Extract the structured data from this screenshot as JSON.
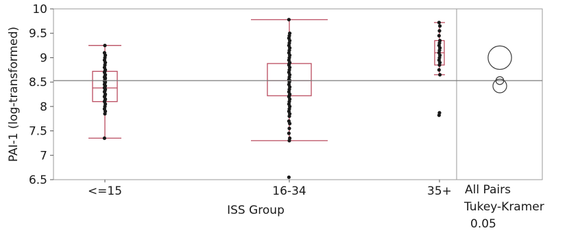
{
  "chart_data": {
    "type": "box",
    "xlabel": "ISS Group",
    "ylabel": "PAI-1 (log-transformed)",
    "ylim": [
      6.5,
      10
    ],
    "yticks": [
      6.5,
      7,
      7.5,
      8,
      8.5,
      9,
      9.5,
      10
    ],
    "grand_mean": 8.53,
    "categories": [
      "<=15",
      "16-34",
      "35+"
    ],
    "box_color": "#b94a5e",
    "point_color": "#1a1a1a",
    "groups": [
      {
        "name": "<=15",
        "whisker_low": 7.35,
        "q1": 8.1,
        "median": 8.38,
        "q3": 8.72,
        "whisker_high": 9.25,
        "points": [
          7.35,
          7.85,
          7.9,
          7.95,
          8.0,
          8.05,
          8.1,
          8.12,
          8.15,
          8.2,
          8.22,
          8.25,
          8.3,
          8.32,
          8.35,
          8.38,
          8.4,
          8.42,
          8.45,
          8.48,
          8.5,
          8.52,
          8.55,
          8.58,
          8.6,
          8.62,
          8.65,
          8.7,
          8.72,
          8.75,
          8.8,
          8.85,
          8.9,
          8.95,
          9.0,
          9.05,
          9.1,
          9.25
        ]
      },
      {
        "name": "16-34",
        "whisker_low": 7.3,
        "q1": 8.22,
        "median": 8.53,
        "q3": 8.88,
        "whisker_high": 9.78,
        "points": [
          6.55,
          7.3,
          7.35,
          7.45,
          7.55,
          7.65,
          7.7,
          7.8,
          7.85,
          7.9,
          7.95,
          8.0,
          8.05,
          8.1,
          8.15,
          8.2,
          8.22,
          8.25,
          8.3,
          8.35,
          8.4,
          8.45,
          8.5,
          8.53,
          8.55,
          8.6,
          8.65,
          8.7,
          8.75,
          8.8,
          8.85,
          8.88,
          8.9,
          8.95,
          9.0,
          9.05,
          9.1,
          9.15,
          9.2,
          9.25,
          9.3,
          9.35,
          9.4,
          9.45,
          9.5,
          9.78
        ]
      },
      {
        "name": "35+",
        "whisker_low": 8.65,
        "q1": 8.85,
        "median": 9.1,
        "q3": 9.35,
        "whisker_high": 9.72,
        "points": [
          7.82,
          7.87,
          8.65,
          8.75,
          8.85,
          8.9,
          8.95,
          9.0,
          9.05,
          9.1,
          9.15,
          9.2,
          9.25,
          9.3,
          9.35,
          9.45,
          9.55,
          9.65,
          9.72
        ]
      }
    ],
    "comparison": {
      "title": "All Pairs",
      "method": "Tukey-Kramer",
      "alpha": "0.05",
      "circles": [
        {
          "group": "35+",
          "center": 9.0,
          "radius": 0.24
        },
        {
          "group": "16-34",
          "center": 8.53,
          "radius": 0.08
        },
        {
          "group": "<=15",
          "center": 8.42,
          "radius": 0.14
        }
      ]
    }
  }
}
